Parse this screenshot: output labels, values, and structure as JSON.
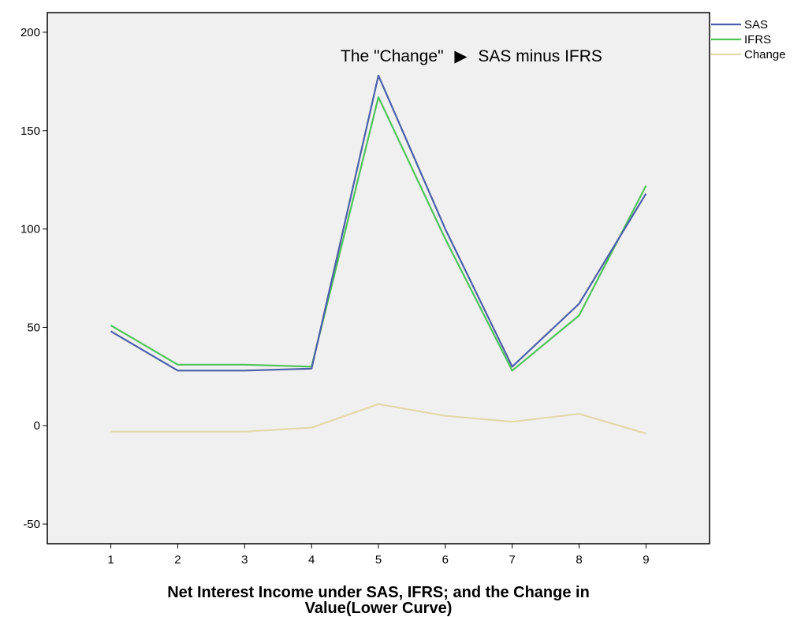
{
  "chart_data": {
    "type": "line",
    "title": "",
    "xlabel": "Net Interest Income under SAS, IFRS; and the Change in Value(Lower Curve)",
    "xlabel_lines": [
      "Net Interest Income under SAS, IFRS; and the Change in",
      "Value(Lower Curve)"
    ],
    "ylabel": "",
    "annotation": {
      "before": "The \"Change\"",
      "after": "SAS minus IFRS"
    },
    "x": [
      1,
      2,
      3,
      4,
      5,
      6,
      7,
      8,
      9
    ],
    "ylim": [
      -60,
      210
    ],
    "yticks": [
      -50,
      0,
      50,
      100,
      150,
      200
    ],
    "grid": false,
    "legend_position": "top-right",
    "series": [
      {
        "name": "SAS",
        "color": "#4b5fa8",
        "values": [
          48,
          28,
          28,
          29,
          178,
          100,
          30,
          62,
          118
        ]
      },
      {
        "name": "IFRS",
        "color": "#4fc45a",
        "values": [
          51,
          31,
          31,
          30,
          167,
          95,
          28,
          56,
          122
        ]
      },
      {
        "name": "Change",
        "color": "#e2d9ad",
        "values": [
          -3,
          -3,
          -3,
          -1,
          11,
          5,
          2,
          6,
          -4
        ]
      }
    ]
  }
}
